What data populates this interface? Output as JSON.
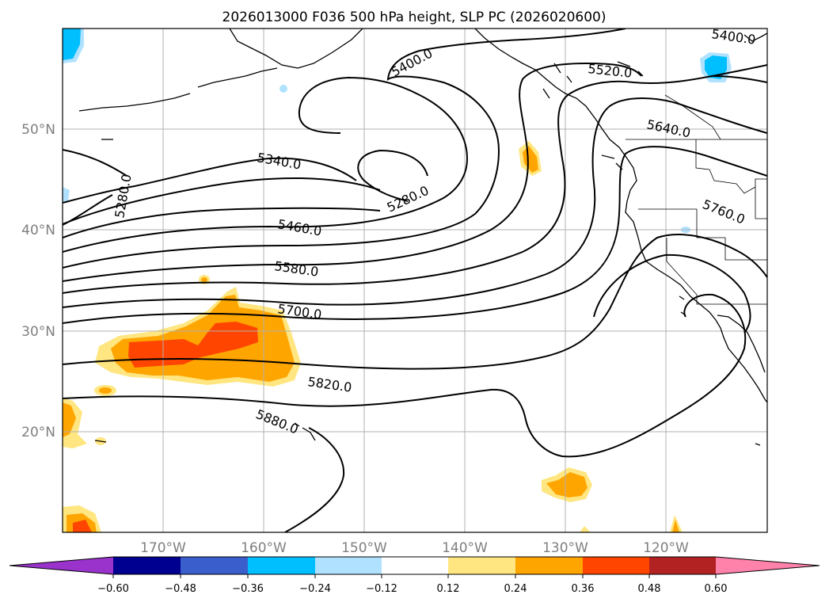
{
  "title": "2026013000 F036 500 hPa height, SLP PC (2026020600)",
  "lat_labels": [
    "50°N",
    "40°N",
    "30°N",
    "20°N"
  ],
  "lon_labels": [
    "170°W",
    "160°W",
    "150°W",
    "140°W",
    "130°W",
    "120°W"
  ],
  "contour_labels": [
    "5400.0",
    "5520.0",
    "5400.0",
    "5640.0",
    "5340.0",
    "5280.0",
    "5280.0",
    "5760.0",
    "5460.0",
    "5580.0",
    "5700.0",
    "5820.0",
    "5880.0"
  ],
  "colorbar": {
    "tick_labels": [
      "−0.60",
      "−0.48",
      "−0.36",
      "−0.24",
      "−0.12",
      "0.12",
      "0.24",
      "0.36",
      "0.48",
      "0.60"
    ],
    "colors": [
      "#9933cc",
      "#000090",
      "#3a5fcd",
      "#00bfff",
      "#b0e2ff",
      "#ffffff",
      "#ffe680",
      "#ffa500",
      "#ff4500",
      "#b22222",
      "#ff82ab"
    ]
  },
  "shade_colors": {
    "yellow": "#ffe680",
    "orange": "#ffa500",
    "red": "#ff4500",
    "light_blue": "#b0e2ff",
    "blue": "#00bfff"
  }
}
